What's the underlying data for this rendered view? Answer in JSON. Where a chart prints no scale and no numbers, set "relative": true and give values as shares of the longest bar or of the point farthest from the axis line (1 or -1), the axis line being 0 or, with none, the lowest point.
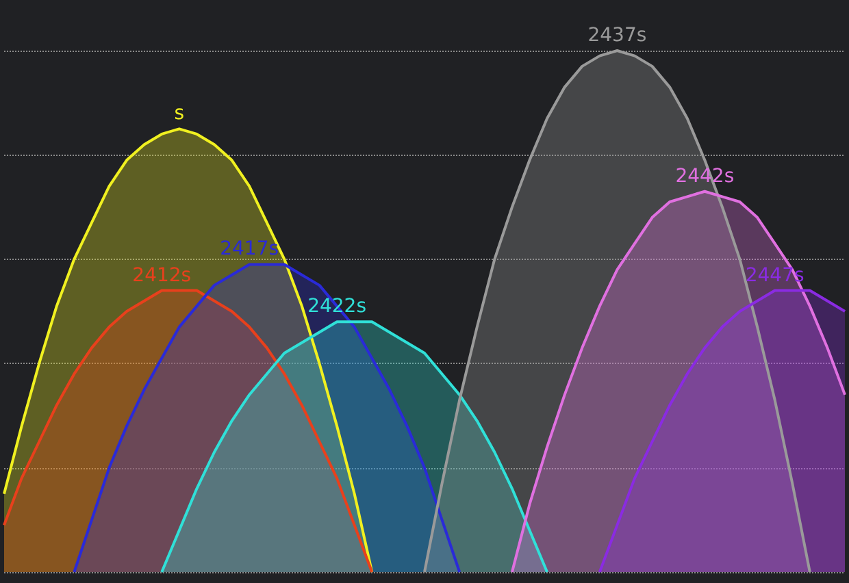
{
  "chart_data": {
    "type": "area",
    "relative": true,
    "grid": "y",
    "legend": false,
    "marker": "none",
    "line_style": "solid",
    "categories": [
      null,
      null,
      null,
      null,
      null,
      null,
      null,
      null,
      null,
      null,
      null,
      null,
      null,
      null,
      null,
      null,
      null,
      null,
      null,
      null,
      null,
      null,
      null,
      null,
      null,
      null,
      null,
      null,
      null,
      null,
      null,
      null,
      null,
      null,
      null,
      null,
      null,
      null,
      null,
      null,
      null,
      null,
      null,
      null,
      null,
      null,
      null,
      null,
      null
    ],
    "series": [
      {
        "name": "s",
        "color": "#f0f020",
        "values": [
          0.15,
          0.28,
          0.4,
          0.51,
          0.6,
          0.67,
          0.74,
          0.79,
          0.82,
          0.84,
          0.85,
          0.84,
          0.82,
          0.79,
          0.74,
          0.67,
          0.6,
          0.51,
          0.4,
          0.28,
          0.15,
          0,
          null,
          null,
          null,
          null,
          null,
          null,
          null,
          null,
          null,
          null,
          null,
          null,
          null,
          null,
          null,
          null,
          null,
          null,
          null,
          null,
          null,
          null,
          null,
          null,
          null,
          null,
          null
        ]
      },
      {
        "name": "2412s",
        "color": "#e8401c",
        "values": [
          0.09,
          0.18,
          0.25,
          0.32,
          0.38,
          0.43,
          0.47,
          0.5,
          0.52,
          0.54,
          0.54,
          0.54,
          0.52,
          0.5,
          0.47,
          0.43,
          0.38,
          0.32,
          0.25,
          0.18,
          0.09,
          0,
          null,
          null,
          null,
          null,
          null,
          null,
          null,
          null,
          null,
          null,
          null,
          null,
          null,
          null,
          null,
          null,
          null,
          null,
          null,
          null,
          null,
          null,
          null,
          null,
          null,
          null,
          null
        ]
      },
      {
        "name": "2417s",
        "color": "#2a2ad8",
        "values": [
          null,
          null,
          null,
          null,
          0,
          0.1,
          0.2,
          0.28,
          0.35,
          0.41,
          0.47,
          0.51,
          0.55,
          0.57,
          0.59,
          0.59,
          0.59,
          0.57,
          0.55,
          0.51,
          0.47,
          0.41,
          0.35,
          0.28,
          0.2,
          0.1,
          0,
          null,
          null,
          null,
          null,
          null,
          null,
          null,
          null,
          null,
          null,
          null,
          null,
          null,
          null,
          null,
          null,
          null,
          null,
          null,
          null,
          null,
          null
        ]
      },
      {
        "name": "2422s",
        "color": "#30e0d8",
        "values": [
          null,
          null,
          null,
          null,
          null,
          null,
          null,
          null,
          null,
          0,
          0.08,
          0.16,
          0.23,
          0.29,
          0.34,
          0.38,
          0.42,
          0.44,
          0.46,
          0.48,
          0.48,
          0.48,
          0.46,
          0.44,
          0.42,
          0.38,
          0.34,
          0.29,
          0.23,
          0.16,
          0.08,
          0,
          null,
          null,
          null,
          null,
          null,
          null,
          null,
          null,
          null,
          null,
          null,
          null,
          null,
          null,
          null,
          null,
          null
        ]
      },
      {
        "name": "2437s",
        "color": "#9a9a9a",
        "values": [
          null,
          null,
          null,
          null,
          null,
          null,
          null,
          null,
          null,
          null,
          null,
          null,
          null,
          null,
          null,
          null,
          null,
          null,
          null,
          null,
          null,
          null,
          null,
          null,
          0,
          0.17,
          0.33,
          0.47,
          0.6,
          0.7,
          0.79,
          0.87,
          0.93,
          0.97,
          0.99,
          1,
          0.99,
          0.97,
          0.93,
          0.87,
          0.79,
          0.7,
          0.6,
          0.47,
          0.33,
          0.17,
          0,
          null,
          null
        ]
      },
      {
        "name": "2442s",
        "color": "#e070e0",
        "values": [
          null,
          null,
          null,
          null,
          null,
          null,
          null,
          null,
          null,
          null,
          null,
          null,
          null,
          null,
          null,
          null,
          null,
          null,
          null,
          null,
          null,
          null,
          null,
          null,
          null,
          null,
          null,
          null,
          null,
          0,
          0.13,
          0.24,
          0.34,
          0.43,
          0.51,
          0.58,
          0.63,
          0.68,
          0.71,
          0.72,
          0.73,
          0.72,
          0.71,
          0.68,
          0.63,
          0.58,
          0.51,
          0.43,
          0.34
        ]
      },
      {
        "name": "2447s",
        "color": "#8a2be2",
        "values": [
          null,
          null,
          null,
          null,
          null,
          null,
          null,
          null,
          null,
          null,
          null,
          null,
          null,
          null,
          null,
          null,
          null,
          null,
          null,
          null,
          null,
          null,
          null,
          null,
          null,
          null,
          null,
          null,
          null,
          null,
          null,
          null,
          null,
          null,
          0,
          0.09,
          0.18,
          0.25,
          0.32,
          0.38,
          0.43,
          0.47,
          0.5,
          0.52,
          0.54,
          0.54,
          0.54,
          0.52,
          0.5
        ]
      }
    ]
  }
}
